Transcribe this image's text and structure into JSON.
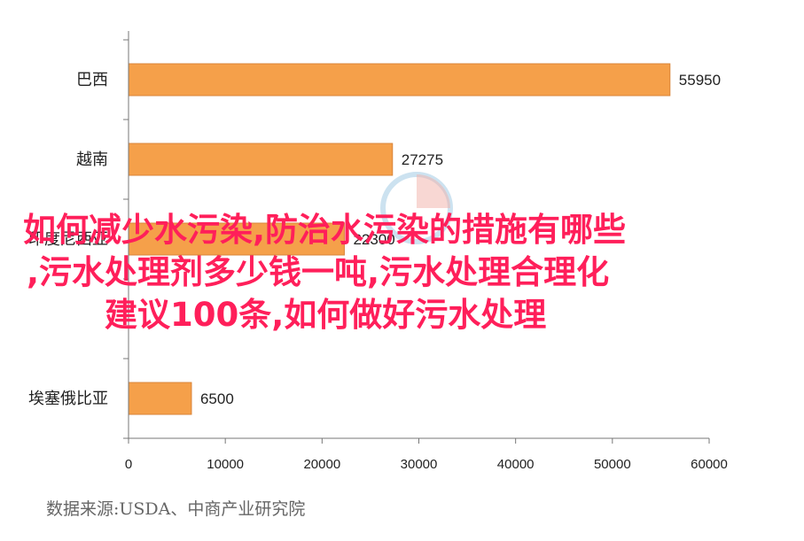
{
  "chart_data": {
    "type": "bar",
    "orientation": "horizontal",
    "categories": [
      "巴西",
      "越南",
      "印度尼西亚",
      "",
      "埃塞俄比亚"
    ],
    "values": [
      55950,
      27275,
      22300,
      null,
      6500
    ],
    "value_labels": [
      "55950",
      "27275",
      "22300",
      "",
      "6500"
    ],
    "xlim": [
      0,
      60000
    ],
    "xticks": [
      0,
      10000,
      20000,
      30000,
      40000,
      50000,
      60000
    ],
    "bar_color": "#f5a04a",
    "bar_edge_color": "#d9843a",
    "grid": false
  },
  "source_text": "数据来源:USDA、中商产业研究院",
  "overlay_title": {
    "line1": "如何减少水污染,防治水污染的措施有哪些",
    "line2": ",污水处理剂多少钱一吨,污水处理合理化",
    "line3": "建议100条,如何做好污水处理",
    "color": "#ff1f5a"
  }
}
